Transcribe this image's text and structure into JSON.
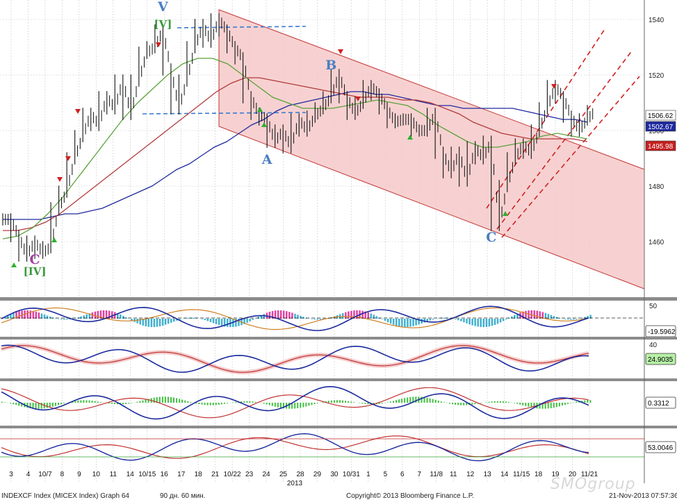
{
  "chart_data": {
    "type": "line",
    "title": "",
    "y_ticks": [
      1460,
      1480,
      1500,
      1520,
      1540
    ],
    "y_range": [
      1440,
      1546
    ],
    "x_ticks": [
      "3",
      "4",
      "10/7",
      "8",
      "9",
      "10",
      "11",
      "14",
      "10/15",
      "16",
      "17",
      "18",
      "21",
      "10/22",
      "23",
      "24",
      "25",
      "28",
      "29",
      "30",
      "10/31",
      "1",
      "5",
      "6",
      "7",
      "11/8",
      "11",
      "12",
      "13",
      "14",
      "11/15",
      "18",
      "19",
      "20",
      "11/21"
    ],
    "x_year_label": "2013",
    "price_series": {
      "name": "INDEXCF",
      "values": [
        1468,
        1462,
        1455,
        1460,
        1456,
        1458,
        1472,
        1478,
        1490,
        1498,
        1506,
        1502,
        1512,
        1508,
        1518,
        1506,
        1518,
        1528,
        1530,
        1536,
        1522,
        1508,
        1518,
        1530,
        1538,
        1532,
        1540,
        1536,
        1530,
        1526,
        1512,
        1506,
        1504,
        1496,
        1500,
        1494,
        1504,
        1500,
        1505,
        1508,
        1512,
        1520,
        1512,
        1506,
        1510,
        1516,
        1513,
        1508,
        1503,
        1504,
        1504,
        1500,
        1500,
        1506,
        1492,
        1485,
        1492,
        1482,
        1494,
        1490,
        1496,
        1466,
        1480,
        1490,
        1495,
        1492,
        1500,
        1508,
        1516,
        1512,
        1505,
        1500,
        1504,
        1507
      ]
    },
    "ma_series": [
      {
        "color": "#1f2a9e",
        "values": [
          1468,
          1468,
          1468,
          1468,
          1469,
          1470,
          1470,
          1471,
          1472,
          1474,
          1476,
          1478,
          1480,
          1483,
          1486,
          1488,
          1491,
          1494,
          1496,
          1499,
          1502,
          1504,
          1507,
          1509,
          1510,
          1511,
          1512,
          1513,
          1514,
          1514,
          1513,
          1513,
          1512,
          1511,
          1510,
          1509,
          1509,
          1508,
          1508,
          1508,
          1508,
          1508,
          1507,
          1506,
          1505,
          1504,
          1504,
          1503
        ]
      },
      {
        "color": "#b23a3a",
        "values": [
          1464,
          1464,
          1465,
          1467,
          1470,
          1474,
          1478,
          1482,
          1486,
          1490,
          1494,
          1498,
          1502,
          1506,
          1510,
          1514,
          1517,
          1519,
          1519,
          1518,
          1517,
          1516,
          1515,
          1514,
          1513,
          1512,
          1512,
          1512,
          1511,
          1511,
          1510,
          1508,
          1506,
          1503,
          1501,
          1499,
          1498,
          1497,
          1497,
          1497,
          1497,
          1496
        ]
      },
      {
        "color": "#5aa23a",
        "values": [
          1461,
          1462,
          1465,
          1470,
          1476,
          1483,
          1490,
          1497,
          1504,
          1510,
          1515,
          1520,
          1524,
          1526,
          1526,
          1524,
          1520,
          1516,
          1512,
          1510,
          1508,
          1508,
          1508,
          1509,
          1510,
          1511,
          1510,
          1509,
          1506,
          1502,
          1499,
          1496,
          1494,
          1494,
          1495,
          1496,
          1498,
          1499,
          1498,
          1497
        ]
      }
    ],
    "price_labels": [
      {
        "value": 1506.62,
        "text": "1506.62",
        "bg": "#ffffff",
        "fg": "#000000"
      },
      {
        "value": 1502.67,
        "text": "1502.67",
        "bg": "#1f2a9e",
        "fg": "#ffffff"
      },
      {
        "value": 1495.98,
        "text": "1495.98",
        "bg": "#c42020",
        "fg": "#ffffff"
      }
    ],
    "wave_labels": [
      {
        "text": "V",
        "value": 1543,
        "color": "#4a7fc0",
        "idx": 20
      },
      {
        "text": "[V]",
        "value": 1537,
        "color": "#3a9a3a",
        "idx": 20
      },
      {
        "text": "B",
        "value": 1522,
        "color": "#4a7fc0",
        "idx": 41
      },
      {
        "text": "A",
        "value": 1488,
        "color": "#4a7fc0",
        "idx": 33
      },
      {
        "text": "C",
        "value": 1460,
        "color": "#4a7fc0",
        "idx": 61
      },
      {
        "text": "C",
        "value": 1452,
        "color": "#a040a0",
        "idx": 4
      },
      {
        "text": "[IV]",
        "value": 1448,
        "color": "#3a9a3a",
        "idx": 4
      }
    ],
    "indicators": [
      {
        "name": "oscillator-1",
        "tick": "50",
        "last": "-19.5962",
        "last_bg": "#ffffff"
      },
      {
        "name": "oscillator-2",
        "tick": "40",
        "last": "24.9035",
        "last_bg": "#b8f0a8"
      },
      {
        "name": "oscillator-3",
        "tick": "",
        "last": "0.3312",
        "last_bg": "#ffffff"
      },
      {
        "name": "oscillator-4",
        "tick": "",
        "last": "53.0046",
        "last_bg": "#ffffff"
      }
    ]
  },
  "footer": {
    "left": "INDEXCF Index (MICEX Index) Graph 64",
    "period": "90 дн. 60 мин.",
    "copyright": "Copyright© 2013 Bloomberg Finance L.P.",
    "timestamp": "21-Nov-2013 07:57:36"
  },
  "watermark": "SMOgroup"
}
